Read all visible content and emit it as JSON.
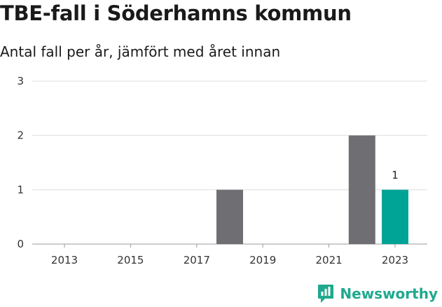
{
  "title": "TBE-fall i Söderhamns kommun",
  "subtitle": "Antal fall per år, jämfört med året innan",
  "brand": {
    "name": "Newsworthy",
    "icon": "newsworthy-logo-icon",
    "color": "#1fa98e"
  },
  "chart_data": {
    "type": "bar",
    "categories": [
      "2013",
      "2014",
      "2015",
      "2016",
      "2017",
      "2018",
      "2019",
      "2020",
      "2021",
      "2022",
      "2023"
    ],
    "x_tick_labels": [
      "2013",
      "2015",
      "2017",
      "2019",
      "2021",
      "2023"
    ],
    "values": [
      0,
      0,
      0,
      0,
      0,
      1,
      0,
      0,
      0,
      2,
      1
    ],
    "highlight_category": "2023",
    "data_labels": [
      {
        "category": "2023",
        "text": "1"
      }
    ],
    "ylim": [
      0,
      3
    ],
    "y_ticks": [
      0,
      1,
      2,
      3
    ],
    "colors": {
      "bar": "#6f6e73",
      "highlight": "#00a496"
    },
    "grid": true,
    "legend": "none"
  }
}
